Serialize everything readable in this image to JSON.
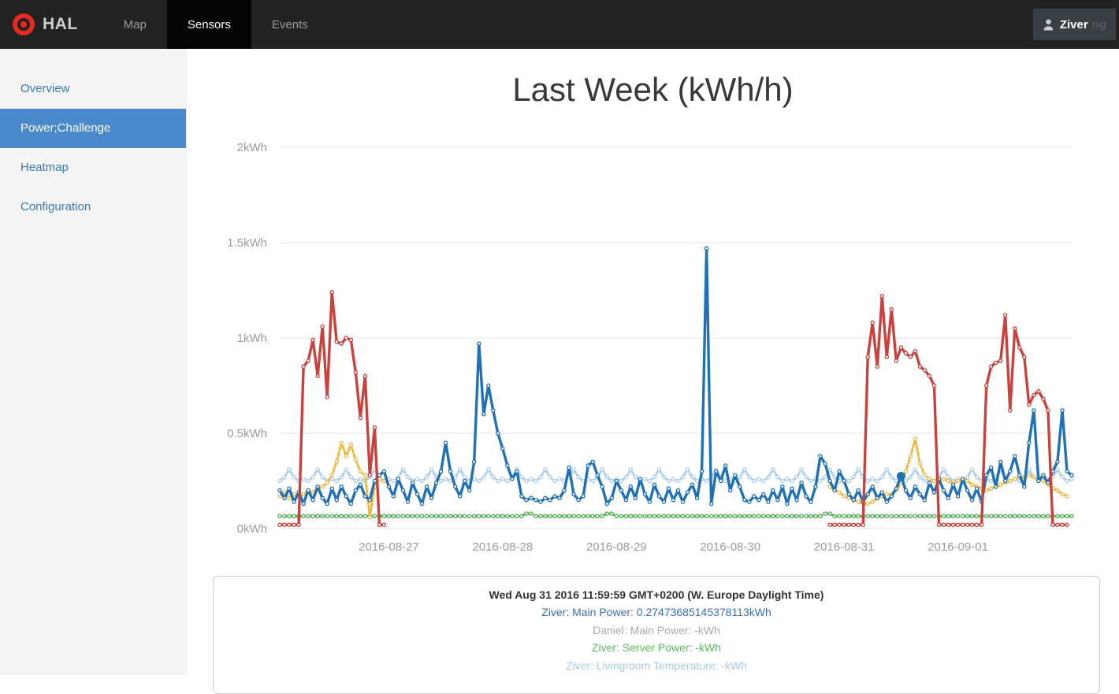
{
  "navbar": {
    "brand": "HAL",
    "items": [
      {
        "label": "Map",
        "active": false
      },
      {
        "label": "Sensors",
        "active": true
      },
      {
        "label": "Events",
        "active": false
      }
    ],
    "user": {
      "label": "Ziver",
      "suffix": "ng"
    }
  },
  "sidebar": {
    "items": [
      {
        "label": "Overview",
        "active": false
      },
      {
        "label": "Power;Challenge",
        "active": true
      },
      {
        "label": "Heatmap",
        "active": false
      },
      {
        "label": "Configuration",
        "active": false
      }
    ]
  },
  "main": {
    "title": "Last Week (kWh/h)"
  },
  "tooltip": {
    "date": "Wed Aug 31 2016 11:59:59 GMT+0200 (W. Europe Daylight Time)",
    "rows": [
      {
        "text": "Ziver: Main Power: 0.27473685145378113kWh",
        "color": "#3a6fb0"
      },
      {
        "text": "Daniel: Main Power: -kWh",
        "color": "#ababab"
      },
      {
        "text": "Ziver: Server Power: -kWh",
        "color": "#5cb85c"
      },
      {
        "text": "Ziver: Livingroom Temperature: -kWh",
        "color": "#a6c9e6"
      }
    ]
  },
  "chart_data": {
    "type": "line",
    "title": "Last Week (kWh/h)",
    "x_tick_labels": [
      "2016-08-27",
      "2016-08-28",
      "2016-08-29",
      "2016-08-30",
      "2016-08-31",
      "2016-09-01"
    ],
    "y_tick_labels": [
      "0kWh",
      "0.5kWh",
      "1kWh",
      "1.5kWh",
      "2kWh"
    ],
    "ylim": [
      0,
      2
    ],
    "x_unit": "hours, 168 hourly samples starting 2016-08-26 01:00",
    "grid": "horizontal",
    "legend_position": "none",
    "hover_point": {
      "series": "Ziver: Main Power",
      "index": 131,
      "value": 0.275
    },
    "series": [
      {
        "name": "Ziver: Livingroom Temperature",
        "color": "#aecfeb",
        "dash": "4 3",
        "width": 3,
        "values": [
          0.25,
          0.27,
          0.31,
          0.27,
          0.25,
          0.26,
          0.25,
          0.27,
          0.31,
          0.27,
          0.25,
          0.26,
          0.25,
          0.27,
          0.31,
          0.27,
          0.25,
          0.26,
          0.25,
          0.27,
          0.31,
          0.27,
          0.25,
          0.26,
          0.25,
          0.27,
          0.31,
          0.27,
          0.25,
          0.26,
          0.25,
          0.27,
          0.31,
          0.27,
          0.25,
          0.26,
          0.25,
          0.27,
          0.31,
          0.27,
          0.25,
          0.26,
          0.25,
          0.27,
          0.31,
          0.27,
          0.25,
          0.26,
          0.25,
          0.27,
          0.31,
          0.27,
          0.25,
          0.26,
          0.25,
          0.27,
          0.31,
          0.27,
          0.25,
          0.26,
          0.25,
          0.27,
          0.31,
          0.27,
          0.25,
          0.26,
          0.25,
          0.27,
          0.31,
          0.27,
          0.25,
          0.26,
          0.25,
          0.27,
          0.31,
          0.27,
          0.25,
          0.26,
          0.25,
          0.27,
          0.31,
          0.27,
          0.25,
          0.26,
          0.25,
          0.27,
          0.31,
          0.27,
          0.25,
          0.26,
          0.25,
          0.27,
          0.31,
          0.27,
          0.25,
          0.26,
          0.25,
          0.27,
          0.31,
          0.27,
          0.25,
          0.26,
          0.25,
          0.27,
          0.31,
          0.27,
          0.25,
          0.26,
          0.25,
          0.27,
          0.31,
          0.27,
          0.25,
          0.26,
          0.25,
          0.27,
          0.31,
          0.27,
          0.25,
          0.26,
          0.25,
          0.27,
          0.31,
          0.27,
          0.25,
          0.26,
          0.25,
          0.27,
          0.31,
          0.27,
          0.25,
          0.26,
          0.25,
          0.27,
          0.31,
          0.27,
          0.25,
          0.26,
          0.25,
          0.27,
          0.31,
          0.27,
          0.25,
          0.26,
          0.25,
          0.27,
          0.31,
          0.27,
          0.25,
          0.26,
          0.25,
          0.27,
          0.31,
          0.27,
          0.25,
          0.26,
          0.25,
          0.27,
          0.31,
          0.27,
          0.25,
          0.26,
          0.25,
          0.27,
          0.31,
          0.27,
          0.25,
          0.26
        ]
      },
      {
        "name": "Ziver: Server Power",
        "color": "#4fae52",
        "dash": "1.5 3.5",
        "width": 3,
        "values": [
          0.065,
          0.065,
          0.065,
          0.065,
          0.065,
          0.065,
          0.065,
          0.065,
          0.065,
          0.065,
          0.065,
          0.065,
          0.065,
          0.065,
          0.065,
          0.065,
          0.065,
          0.065,
          0.065,
          0.065,
          0.065,
          0.065,
          0.065,
          0.065,
          0.065,
          0.065,
          0.065,
          0.065,
          0.065,
          0.065,
          0.065,
          0.065,
          0.065,
          0.065,
          0.065,
          0.065,
          0.065,
          0.065,
          0.065,
          0.065,
          0.065,
          0.065,
          0.065,
          0.065,
          0.065,
          0.065,
          0.065,
          0.065,
          0.065,
          0.065,
          0.065,
          0.065,
          0.078,
          0.078,
          0.065,
          0.065,
          0.065,
          0.065,
          0.065,
          0.065,
          0.065,
          0.065,
          0.065,
          0.065,
          0.065,
          0.065,
          0.065,
          0.065,
          0.065,
          0.078,
          0.078,
          0.065,
          0.065,
          0.065,
          0.065,
          0.065,
          0.065,
          0.065,
          0.065,
          0.065,
          0.065,
          0.065,
          0.065,
          0.065,
          0.065,
          0.065,
          0.065,
          0.065,
          0.065,
          0.065,
          0.065,
          0.065,
          0.065,
          0.065,
          0.065,
          0.065,
          0.065,
          0.065,
          0.065,
          0.065,
          0.065,
          0.065,
          0.065,
          0.065,
          0.065,
          0.065,
          0.065,
          0.065,
          0.065,
          0.065,
          0.065,
          0.065,
          0.065,
          0.065,
          0.065,
          0.078,
          0.078,
          0.065,
          0.065,
          0.065,
          0.065,
          0.065,
          0.065,
          0.065,
          0.065,
          0.065,
          0.065,
          0.065,
          0.065,
          0.065,
          0.065,
          0.065,
          0.065,
          0.065,
          0.065,
          0.065,
          0.065,
          0.065,
          0.065,
          0.065,
          0.065,
          0.065,
          0.065,
          0.065,
          0.065,
          0.065,
          0.065,
          0.065,
          0.065,
          0.065,
          0.065,
          0.065,
          0.065,
          0.065,
          0.065,
          0.065,
          0.065,
          0.065,
          0.065,
          0.065,
          0.065,
          0.065,
          0.065,
          0.065,
          0.065,
          0.065,
          0.065,
          0.065
        ]
      },
      {
        "name": "unlabeled-yellow",
        "color": "#eeb93f",
        "dash": "4 3",
        "width": 3,
        "values": [
          0.17,
          0.19,
          0.16,
          0.18,
          0.17,
          0.18,
          0.2,
          0.19,
          0.21,
          0.22,
          0.24,
          0.28,
          0.35,
          0.45,
          0.38,
          0.44,
          0.36,
          0.3,
          0.28,
          0.06,
          0.22,
          0.26,
          0.25,
          null,
          null,
          null,
          null,
          null,
          null,
          null,
          null,
          null,
          null,
          null,
          null,
          null,
          null,
          null,
          null,
          null,
          null,
          null,
          null,
          null,
          null,
          null,
          null,
          null,
          null,
          null,
          null,
          null,
          null,
          null,
          null,
          null,
          null,
          null,
          null,
          null,
          null,
          null,
          null,
          null,
          null,
          null,
          null,
          null,
          null,
          null,
          null,
          null,
          null,
          null,
          null,
          null,
          null,
          null,
          null,
          null,
          null,
          null,
          null,
          null,
          null,
          null,
          null,
          null,
          null,
          null,
          null,
          null,
          null,
          null,
          null,
          null,
          null,
          null,
          null,
          null,
          null,
          null,
          null,
          null,
          null,
          null,
          null,
          null,
          null,
          null,
          null,
          null,
          null,
          null,
          null,
          null,
          0.22,
          0.2,
          0.19,
          0.17,
          0.16,
          0.15,
          0.14,
          0.13,
          0.13,
          0.14,
          0.16,
          0.17,
          0.18,
          0.18,
          0.2,
          0.24,
          0.3,
          0.38,
          0.47,
          0.34,
          0.28,
          0.26,
          0.25,
          0.25,
          0.26,
          0.25,
          0.24,
          0.25,
          0.26,
          0.25,
          0.23,
          0.22,
          0.21,
          0.2,
          0.21,
          0.22,
          0.23,
          0.24,
          0.25,
          0.26,
          0.27,
          0.27,
          0.28,
          0.27,
          0.26,
          0.25,
          0.23,
          0.21,
          0.2,
          0.18,
          0.17
        ]
      },
      {
        "name": "Ziver: Main Power",
        "color": "#1f70b5",
        "dash": null,
        "width": 3.4,
        "values": [
          0.2,
          0.16,
          0.21,
          0.14,
          0.19,
          0.13,
          0.2,
          0.15,
          0.22,
          0.16,
          0.13,
          0.21,
          0.15,
          0.22,
          0.17,
          0.13,
          0.2,
          0.23,
          0.17,
          0.15,
          0.25,
          0.28,
          0.3,
          0.22,
          0.17,
          0.26,
          0.2,
          0.14,
          0.24,
          0.18,
          0.13,
          0.22,
          0.16,
          0.24,
          0.3,
          0.45,
          0.3,
          0.22,
          0.17,
          0.25,
          0.2,
          0.35,
          0.97,
          0.6,
          0.75,
          0.62,
          0.5,
          0.42,
          0.33,
          0.26,
          0.3,
          0.17,
          0.15,
          0.16,
          0.15,
          0.14,
          0.16,
          0.15,
          0.17,
          0.16,
          0.2,
          0.32,
          0.18,
          0.15,
          0.17,
          0.33,
          0.35,
          0.28,
          0.22,
          0.13,
          0.16,
          0.25,
          0.2,
          0.15,
          0.22,
          0.16,
          0.26,
          0.18,
          0.14,
          0.23,
          0.17,
          0.14,
          0.21,
          0.15,
          0.2,
          0.14,
          0.19,
          0.23,
          0.16,
          0.3,
          1.47,
          0.13,
          0.3,
          0.25,
          0.33,
          0.2,
          0.28,
          0.22,
          0.15,
          0.14,
          0.17,
          0.15,
          0.18,
          0.14,
          0.2,
          0.15,
          0.22,
          0.13,
          0.21,
          0.15,
          0.24,
          0.17,
          0.14,
          0.22,
          0.38,
          0.34,
          0.25,
          0.2,
          0.3,
          0.25,
          0.18,
          0.15,
          0.2,
          0.14,
          0.18,
          0.22,
          0.16,
          0.19,
          0.14,
          0.17,
          0.21,
          0.275,
          0.2,
          0.16,
          0.22,
          0.18,
          0.15,
          0.24,
          0.19,
          0.26,
          0.2,
          0.16,
          0.23,
          0.17,
          0.26,
          0.2,
          0.15,
          0.21,
          0.14,
          0.28,
          0.32,
          0.22,
          0.35,
          0.25,
          0.3,
          0.38,
          0.28,
          0.22,
          0.45,
          0.62,
          0.25,
          0.28,
          0.24,
          0.3,
          0.35,
          0.62,
          0.3,
          0.28
        ]
      },
      {
        "name": "Daniel: Main Power",
        "color": "#c9423d",
        "dash": null,
        "width": 3.4,
        "values": [
          0.02,
          0.02,
          0.02,
          0.02,
          0.02,
          0.85,
          0.88,
          0.99,
          0.8,
          1.06,
          0.69,
          1.24,
          0.98,
          0.97,
          1.0,
          0.99,
          0.82,
          0.58,
          0.8,
          0.28,
          0.53,
          0.02,
          0.02,
          null,
          null,
          null,
          null,
          null,
          null,
          null,
          null,
          null,
          null,
          null,
          null,
          null,
          null,
          null,
          null,
          null,
          null,
          null,
          null,
          null,
          null,
          null,
          null,
          null,
          null,
          null,
          null,
          null,
          null,
          null,
          null,
          null,
          null,
          null,
          null,
          null,
          null,
          null,
          null,
          null,
          null,
          null,
          null,
          null,
          null,
          null,
          null,
          null,
          null,
          null,
          null,
          null,
          null,
          null,
          null,
          null,
          null,
          null,
          null,
          null,
          null,
          null,
          null,
          null,
          null,
          null,
          null,
          null,
          null,
          null,
          null,
          null,
          null,
          null,
          null,
          null,
          null,
          null,
          null,
          null,
          null,
          null,
          null,
          null,
          null,
          null,
          null,
          null,
          null,
          null,
          null,
          null,
          0.02,
          0.02,
          0.02,
          0.02,
          0.02,
          0.02,
          0.02,
          0.02,
          0.9,
          1.08,
          0.85,
          1.22,
          0.9,
          1.15,
          0.88,
          0.95,
          0.92,
          0.9,
          0.93,
          0.85,
          0.83,
          0.8,
          0.75,
          0.02,
          0.02,
          0.02,
          0.02,
          0.02,
          0.02,
          0.02,
          0.02,
          0.02,
          0.02,
          0.75,
          0.85,
          0.87,
          0.88,
          1.12,
          0.62,
          1.05,
          0.95,
          0.9,
          0.65,
          0.7,
          0.72,
          0.68,
          0.62,
          0.02,
          0.02,
          0.02,
          0.02
        ]
      }
    ]
  }
}
